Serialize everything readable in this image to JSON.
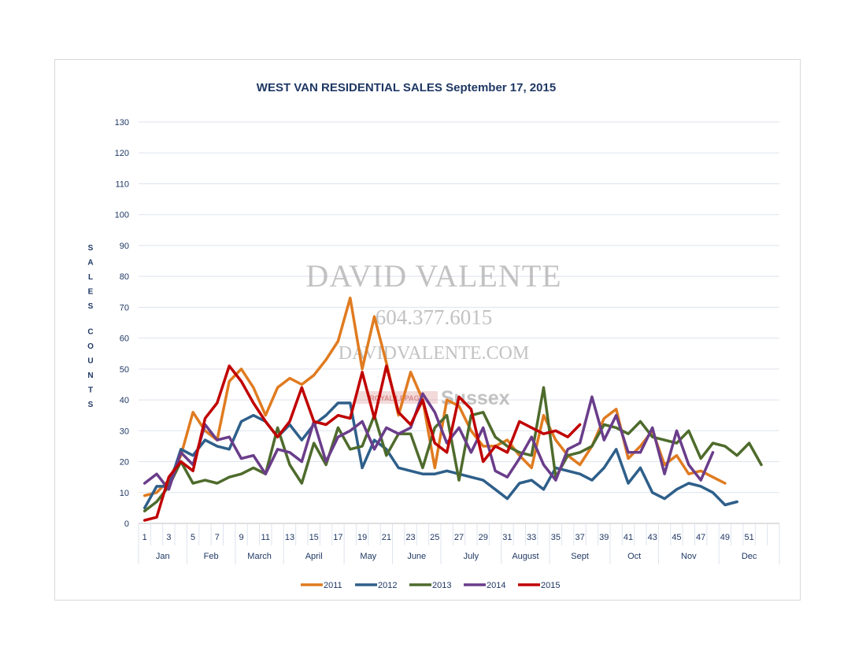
{
  "chart_data": {
    "type": "line",
    "title": "WEST VAN RESIDENTIAL SALES  September 17, 2015",
    "ylabel": "SALES COUNTS",
    "xlabel": "",
    "ylim": [
      0,
      130
    ],
    "y_ticks": [
      "0",
      "10",
      "20",
      "30",
      "40",
      "50",
      "60",
      "70",
      "80",
      "90",
      "100",
      "110",
      "120",
      "130"
    ],
    "x_range": [
      1,
      53
    ],
    "x_tick_labels": [
      "1",
      "3",
      "5",
      "7",
      "9",
      "11",
      "13",
      "15",
      "17",
      "19",
      "21",
      "23",
      "25",
      "27",
      "29",
      "31",
      "33",
      "35",
      "37",
      "39",
      "41",
      "43",
      "45",
      "47",
      "49",
      "51"
    ],
    "months": [
      "Jan",
      "Feb",
      "March",
      "April",
      "May",
      "June",
      "July",
      "August",
      "Sept",
      "Oct",
      "Nov",
      "Dec"
    ],
    "grid": true,
    "legend_position": "bottom",
    "series": [
      {
        "name": "2011",
        "color": "#e07b20",
        "values": [
          9,
          10,
          14,
          22,
          36,
          30,
          27,
          46,
          50,
          44,
          35,
          44,
          47,
          45,
          48,
          53,
          59,
          73,
          50,
          67,
          52,
          35,
          49,
          40,
          18,
          40,
          38,
          30,
          25,
          25,
          27,
          22,
          18,
          35,
          27,
          22,
          19,
          25,
          34,
          37,
          21,
          25,
          30,
          19,
          22,
          16,
          17,
          15,
          13
        ]
      },
      {
        "name": "2012",
        "color": "#2e5f8a",
        "values": [
          5,
          12,
          12,
          24,
          22,
          27,
          25,
          24,
          33,
          35,
          33,
          28,
          32,
          27,
          32,
          35,
          39,
          39,
          18,
          27,
          24,
          18,
          17,
          16,
          16,
          17,
          16,
          15,
          14,
          11,
          8,
          13,
          14,
          11,
          18,
          17,
          16,
          14,
          18,
          24,
          13,
          18,
          10,
          8,
          11,
          13,
          12,
          10,
          6,
          7
        ]
      },
      {
        "name": "2013",
        "color": "#4e6b2c",
        "values": [
          4,
          7,
          12,
          20,
          13,
          14,
          13,
          15,
          16,
          18,
          16,
          31,
          19,
          13,
          26,
          19,
          31,
          24,
          25,
          35,
          22,
          29,
          29,
          18,
          31,
          35,
          14,
          35,
          36,
          28,
          25,
          23,
          22,
          44,
          15,
          22,
          23,
          25,
          32,
          31,
          29,
          33,
          28,
          27,
          26,
          30,
          21,
          26,
          25,
          22,
          26,
          19
        ]
      },
      {
        "name": "2014",
        "color": "#6a3d8a",
        "values": [
          13,
          16,
          11,
          23,
          19,
          32,
          27,
          28,
          21,
          22,
          16,
          24,
          23,
          20,
          33,
          20,
          28,
          30,
          33,
          24,
          31,
          29,
          31,
          42,
          36,
          26,
          31,
          23,
          31,
          17,
          15,
          21,
          28,
          19,
          14,
          24,
          26,
          41,
          27,
          35,
          23,
          23,
          31,
          16,
          30,
          19,
          14,
          23
        ]
      },
      {
        "name": "2015",
        "color": "#c00000",
        "values": [
          1,
          2,
          15,
          20,
          17,
          34,
          39,
          51,
          46,
          39,
          33,
          28,
          33,
          44,
          33,
          32,
          35,
          34,
          49,
          34,
          51,
          36,
          32,
          40,
          26,
          23,
          41,
          37,
          20,
          25,
          23,
          33,
          31,
          29,
          30,
          28,
          32
        ]
      }
    ]
  },
  "watermark": {
    "name": "DAVID VALENTE",
    "phone": "604.377.6015",
    "website": "DAVIDVALENTE.COM",
    "brand": "ROYAL LEPAGE",
    "office": "Sussex"
  }
}
